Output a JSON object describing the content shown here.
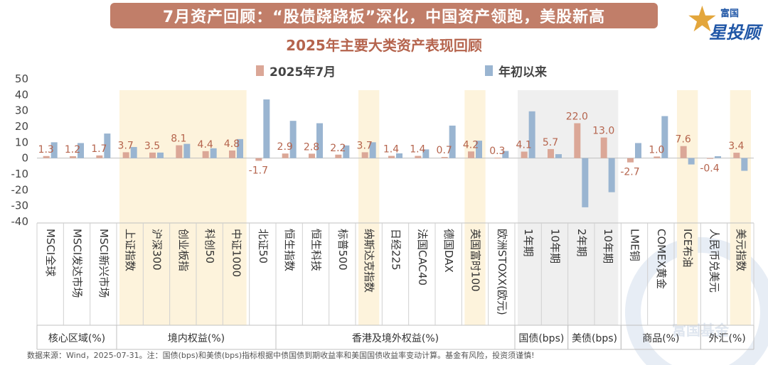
{
  "header": {
    "title": "7月资产回顾：“股债跷跷板”深化，中国资产领跑，美股新高",
    "subtitle": "2025年主要大类资产表现回顾",
    "logo_small": "富国",
    "logo_big": "星投顾",
    "watermark": "富国基金"
  },
  "footnote": "数据来源：Wind，2025-07-31。注：国债(bps)和美债(bps)指标根据中债国债到期收益率和美国国债收益率变动计算。基金有风险，投资须谨慎!",
  "colors": {
    "series1": "#dba797",
    "series2": "#9ab5d1",
    "label": "#b5644d",
    "band_yellow": "#fdf3dc",
    "band_gray": "#efefef"
  },
  "chart_data": {
    "type": "bar",
    "title": "2025年主要大类资产表现回顾",
    "ylim": [
      -40,
      50
    ],
    "yticks": [
      "50",
      "40",
      "30",
      "20",
      "10",
      "0",
      "-10",
      "-20",
      "-30",
      "-40"
    ],
    "series": [
      {
        "name": "2025年7月",
        "values": [
          1.3,
          1.2,
          1.7,
          3.7,
          3.5,
          8.1,
          4.4,
          4.8,
          -1.7,
          2.9,
          2.8,
          2.2,
          3.7,
          1.4,
          1.4,
          0.7,
          4.2,
          0.3,
          4.1,
          5.7,
          22.0,
          13.0,
          -2.7,
          1.0,
          7.6,
          -0.4,
          3.4
        ],
        "labels": [
          "1.3",
          "1.2",
          "1.7",
          "3.7",
          "3.5",
          "8.1",
          "4.4",
          "4.8",
          "-1.7",
          "2.9",
          "2.8",
          "2.2",
          "3.7",
          "1.4",
          "1.4",
          "0.7",
          "4.2",
          "0.3",
          "4.1",
          "5.7",
          "22.0",
          "13.0",
          "-2.7",
          "1.0",
          "7.6",
          "-0.4",
          "3.4"
        ]
      },
      {
        "name": "年初以来",
        "values": [
          10,
          9.5,
          15.5,
          7,
          3.5,
          9,
          6.2,
          12,
          37,
          23.5,
          22,
          8,
          10,
          3,
          5.5,
          20.5,
          11,
          4.5,
          29.5,
          2.5,
          -31,
          -21.5,
          9.5,
          26.5,
          -4,
          1.2,
          -8
        ]
      }
    ],
    "categories": [
      "MSCI全球",
      "MSCI发达市场",
      "MSCI新兴市场",
      "上证指数",
      "沪深300",
      "创业板指",
      "科创50",
      "中证1000",
      "北证50",
      "恒生指数",
      "恒生科技",
      "标普500",
      "纳斯达克指数",
      "日经225",
      "法国CAC40",
      "德国DAX",
      "英国富时100",
      "欧洲STOXX(欧元)",
      "1年期",
      "10年期",
      "2年期",
      "10年期",
      "LME铜",
      "COMEX黄金",
      "ICE布油",
      "人民币兑美元",
      "美元指数"
    ],
    "groups": [
      {
        "label": "核心区域(%)",
        "start": 0,
        "end": 2
      },
      {
        "label": "境内权益(%)",
        "start": 3,
        "end": 8
      },
      {
        "label": "香港及境外权益(%)",
        "start": 9,
        "end": 17
      },
      {
        "label": "国债(bps)",
        "start": 18,
        "end": 19
      },
      {
        "label": "美债(bps)",
        "start": 20,
        "end": 21
      },
      {
        "label": "商品(%)",
        "start": 22,
        "end": 24
      },
      {
        "label": "外汇(%)",
        "start": 25,
        "end": 26
      }
    ],
    "highlights": [
      {
        "start": 3,
        "end": 7,
        "style": "yellow"
      },
      {
        "start": 12,
        "end": 12,
        "style": "yellow"
      },
      {
        "start": 16,
        "end": 16,
        "style": "yellow"
      },
      {
        "start": 18,
        "end": 21,
        "style": "gray"
      },
      {
        "start": 24,
        "end": 24,
        "style": "yellow"
      },
      {
        "start": 26,
        "end": 26,
        "style": "yellow"
      }
    ]
  }
}
